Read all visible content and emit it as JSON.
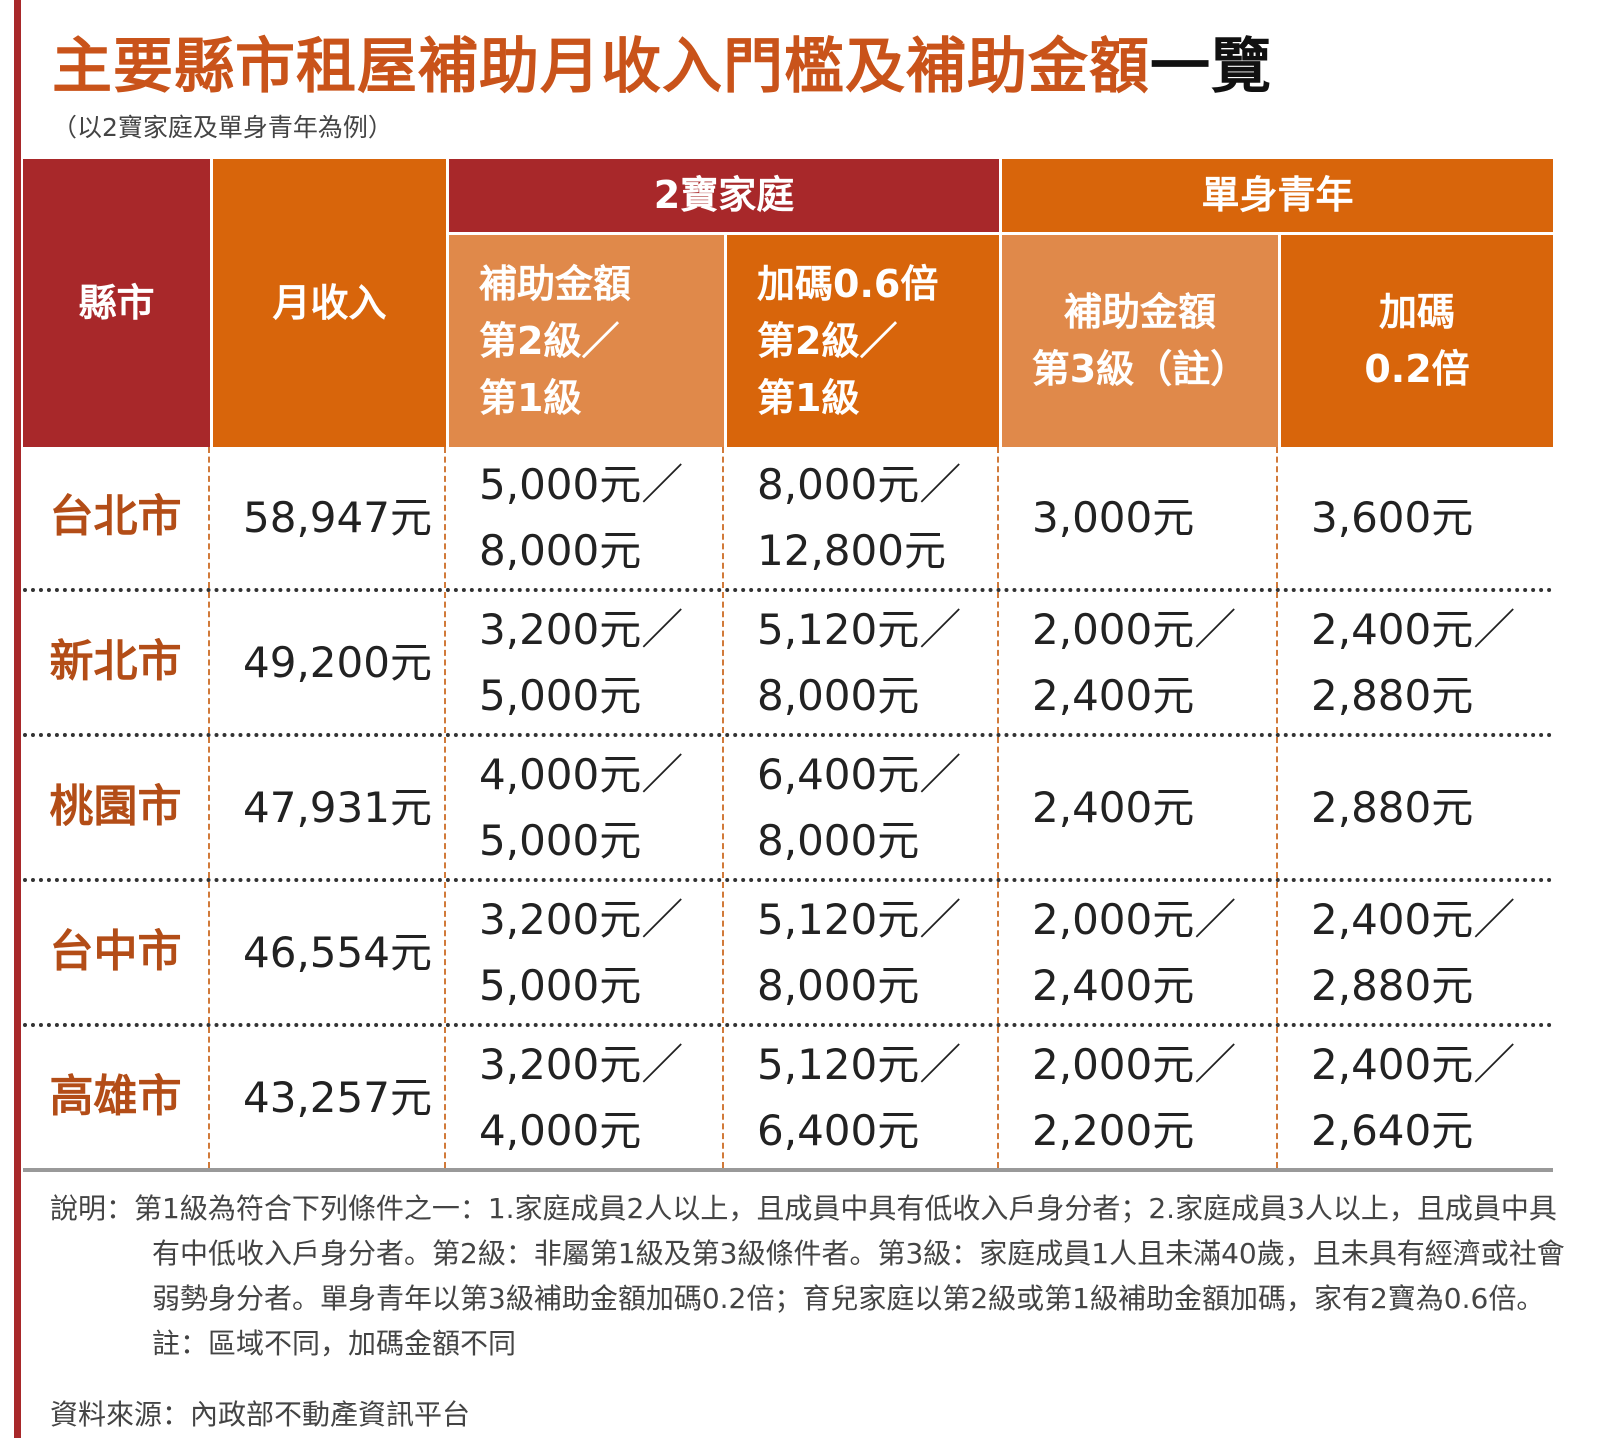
{
  "title": "主要縣市租屋補助月收入門檻及補助金額",
  "title_tail": "一覽",
  "subtitle": "（以2寶家庭及單身青年為例）",
  "headers": {
    "city": "縣市",
    "income": "月收入",
    "group_family": "2寶家庭",
    "group_single": "單身青年",
    "family_subsidy": [
      "補助金額",
      "第2級／",
      "第1級"
    ],
    "family_bonus": [
      "加碼0.6倍",
      "第2級／",
      "第1級"
    ],
    "single_subsidy": [
      "補助金額",
      "第3級（註）"
    ],
    "single_bonus": [
      "加碼",
      "0.2倍"
    ]
  },
  "rows": [
    {
      "city": "台北市",
      "income": "58,947元",
      "family_subsidy": [
        "5,000元／",
        "8,000元"
      ],
      "family_bonus": [
        "8,000元／",
        "12,800元"
      ],
      "single_subsidy": [
        "3,000元",
        ""
      ],
      "single_bonus": [
        "3,600元",
        ""
      ]
    },
    {
      "city": "新北市",
      "income": "49,200元",
      "family_subsidy": [
        "3,200元／",
        "5,000元"
      ],
      "family_bonus": [
        "5,120元／",
        "8,000元"
      ],
      "single_subsidy": [
        "2,000元／",
        "2,400元"
      ],
      "single_bonus": [
        "2,400元／",
        "2,880元"
      ]
    },
    {
      "city": "桃園市",
      "income": "47,931元",
      "family_subsidy": [
        "4,000元／",
        "5,000元"
      ],
      "family_bonus": [
        "6,400元／",
        "8,000元"
      ],
      "single_subsidy": [
        "2,400元",
        ""
      ],
      "single_bonus": [
        "2,880元",
        ""
      ]
    },
    {
      "city": "台中市",
      "income": "46,554元",
      "family_subsidy": [
        "3,200元／",
        "5,000元"
      ],
      "family_bonus": [
        "5,120元／",
        "8,000元"
      ],
      "single_subsidy": [
        "2,000元／",
        "2,400元"
      ],
      "single_bonus": [
        "2,400元／",
        "2,880元"
      ]
    },
    {
      "city": "高雄市",
      "income": "43,257元",
      "family_subsidy": [
        "3,200元／",
        "4,000元"
      ],
      "family_bonus": [
        "5,120元／",
        "6,400元"
      ],
      "single_subsidy": [
        "2,000元／",
        "2,200元"
      ],
      "single_bonus": [
        "2,400元／",
        "2,640元"
      ]
    }
  ],
  "notes": "說明：第1級為符合下列條件之一：1.家庭成員2人以上，且成員中具有低收入戶身分者；2.家庭成員3人以上，且成員中具有中低收入戶身分者。第2級：非屬第1級及第3級條件者。第3級：家庭成員1人且未滿40歲，且未具有經濟或社會弱勢身分者。單身青年以第3級補助金額加碼0.2倍；育兒家庭以第2級或第1級補助金額加碼，家有2寶為0.6倍。註：區域不同，加碼金額不同",
  "source": "資料來源：內政部不動產資訊平台",
  "colors": {
    "red": "#a8282a",
    "orange": "#d8650b",
    "light_orange": "#e0894a",
    "title": "#c9531a"
  }
}
